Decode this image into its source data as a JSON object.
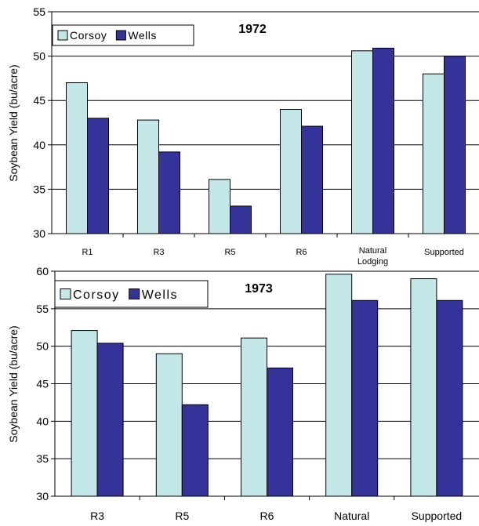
{
  "colors": {
    "corsoy": "#c3e6e6",
    "wells": "#333399",
    "axis": "#000000",
    "grid": "#000000"
  },
  "chart_data": [
    {
      "type": "bar",
      "title": "1972",
      "ylabel": "Soybean Yield (bu/acre)",
      "ylim": [
        30,
        55
      ],
      "yticks": [
        "30",
        "35",
        "40",
        "45",
        "50",
        "55"
      ],
      "grid": true,
      "legend_position": "top-left",
      "categories": [
        "R1",
        "R3",
        "R5",
        "R6",
        "Natural Lodging",
        "Supported"
      ],
      "series": [
        {
          "name": "Corsoy",
          "values": [
            47.0,
            42.8,
            36.1,
            44.0,
            50.6,
            48.0
          ]
        },
        {
          "name": "Wells",
          "values": [
            43.0,
            39.2,
            33.1,
            42.1,
            50.9,
            50.0
          ]
        }
      ]
    },
    {
      "type": "bar",
      "title": "1973",
      "ylabel": "Soybean Yield (bu/acre)",
      "ylim": [
        30,
        60
      ],
      "yticks": [
        "30",
        "35",
        "40",
        "45",
        "50",
        "55",
        "60"
      ],
      "grid": true,
      "legend_position": "top-left",
      "categories": [
        "R3",
        "R5",
        "R6",
        "Natural",
        "Supported"
      ],
      "series": [
        {
          "name": "Corsoy",
          "values": [
            52.1,
            49.0,
            51.1,
            59.6,
            59.0
          ]
        },
        {
          "name": "Wells",
          "values": [
            50.4,
            42.2,
            47.1,
            56.1,
            56.1
          ]
        }
      ]
    }
  ]
}
